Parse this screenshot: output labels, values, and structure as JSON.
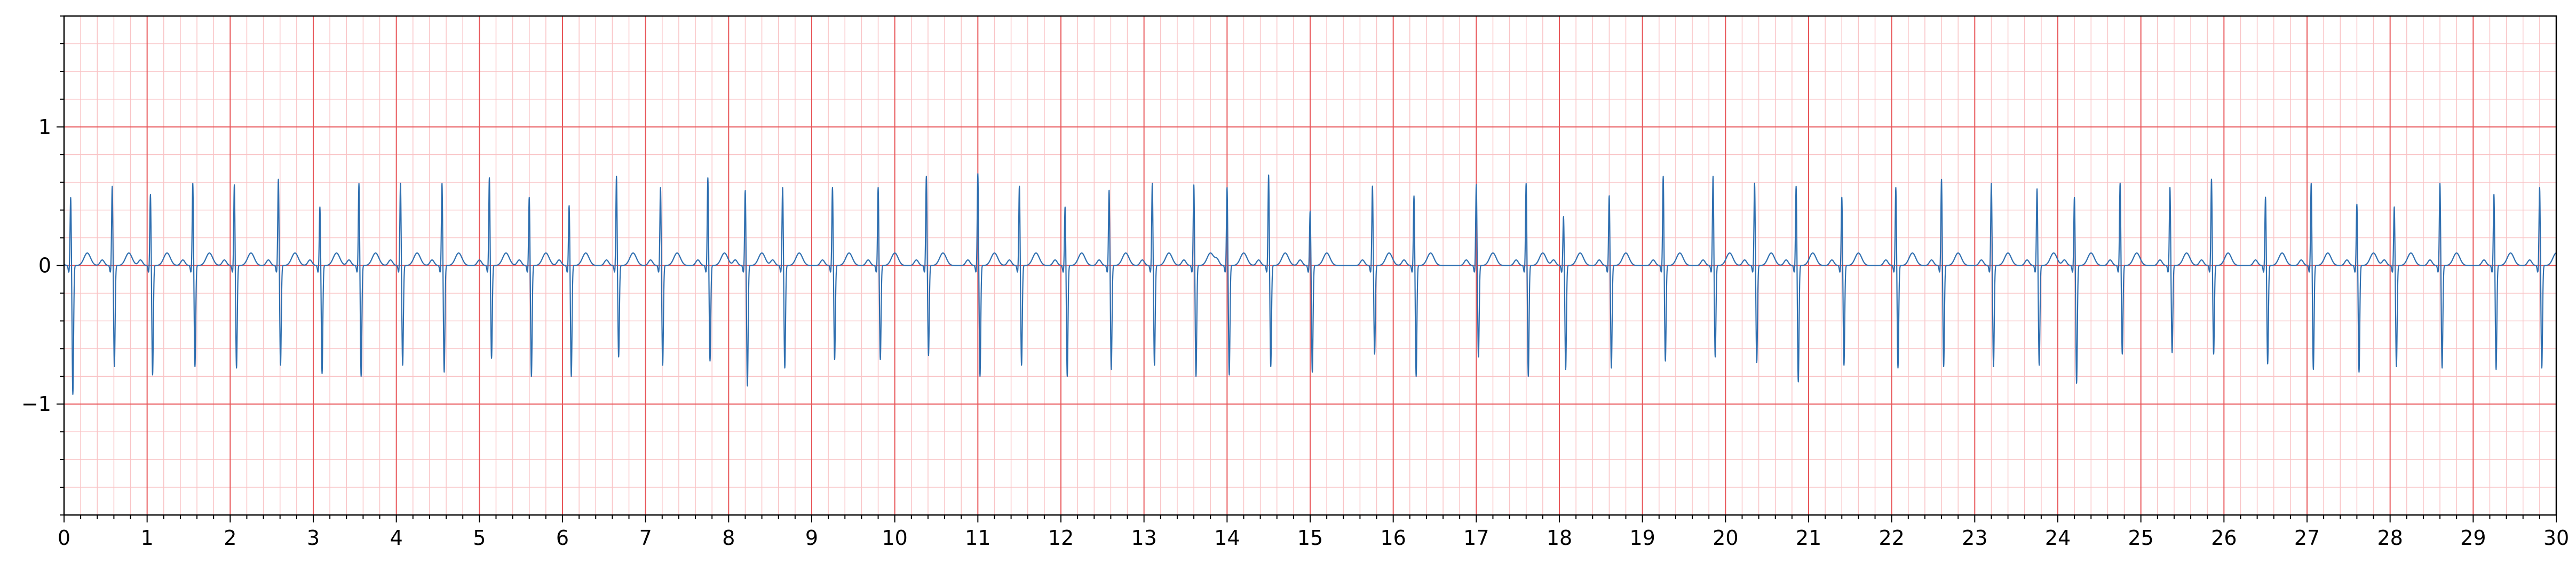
{
  "chart_data": {
    "type": "line",
    "title": "",
    "xlabel": "",
    "ylabel": "",
    "xlim": [
      0,
      30
    ],
    "ylim": [
      -1.8,
      1.8
    ],
    "grid": {
      "on": true,
      "major_color": "#e8575a",
      "minor_color": "#f9c4c6",
      "major_x_step": 1,
      "minor_x_step": 0.2,
      "major_y_step": 1,
      "minor_y_step": 0.2
    },
    "line_color": "#2f6fb0",
    "x_ticks": [
      "0",
      "1",
      "2",
      "3",
      "4",
      "5",
      "6",
      "7",
      "8",
      "9",
      "10",
      "11",
      "12",
      "13",
      "14",
      "15",
      "16",
      "17",
      "18",
      "19",
      "20",
      "21",
      "22",
      "23",
      "24",
      "25",
      "26",
      "27",
      "28",
      "29",
      "30"
    ],
    "y_ticks": [
      {
        "value": -1,
        "label": "−1"
      },
      {
        "value": 0,
        "label": "0"
      },
      {
        "value": 1,
        "label": "1"
      }
    ],
    "heart_rate_bpm": 118,
    "beats": [
      {
        "t": 0.08,
        "r": 0.5,
        "s": -0.93
      },
      {
        "t": 0.58,
        "r": 0.58,
        "s": -0.73
      },
      {
        "t": 1.04,
        "r": 0.52,
        "s": -0.79
      },
      {
        "t": 1.55,
        "r": 0.6,
        "s": -0.73
      },
      {
        "t": 2.05,
        "r": 0.59,
        "s": -0.74
      },
      {
        "t": 2.58,
        "r": 0.63,
        "s": -0.72
      },
      {
        "t": 3.08,
        "r": 0.43,
        "s": -0.78
      },
      {
        "t": 3.55,
        "r": 0.6,
        "s": -0.8
      },
      {
        "t": 4.05,
        "r": 0.6,
        "s": -0.72
      },
      {
        "t": 4.55,
        "r": 0.6,
        "s": -0.77
      },
      {
        "t": 5.12,
        "r": 0.64,
        "s": -0.67
      },
      {
        "t": 5.6,
        "r": 0.5,
        "s": -0.8
      },
      {
        "t": 6.08,
        "r": 0.44,
        "s": -0.8
      },
      {
        "t": 6.65,
        "r": 0.65,
        "s": -0.66
      },
      {
        "t": 7.18,
        "r": 0.57,
        "s": -0.72
      },
      {
        "t": 7.75,
        "r": 0.64,
        "s": -0.69
      },
      {
        "t": 8.2,
        "r": 0.55,
        "s": -0.87
      },
      {
        "t": 8.65,
        "r": 0.57,
        "s": -0.74
      },
      {
        "t": 9.25,
        "r": 0.57,
        "s": -0.68
      },
      {
        "t": 9.8,
        "r": 0.57,
        "s": -0.68
      },
      {
        "t": 10.38,
        "r": 0.65,
        "s": -0.65
      },
      {
        "t": 11.0,
        "r": 0.67,
        "s": -0.8
      },
      {
        "t": 11.5,
        "r": 0.58,
        "s": -0.72
      },
      {
        "t": 12.05,
        "r": 0.43,
        "s": -0.8
      },
      {
        "t": 12.58,
        "r": 0.55,
        "s": -0.75
      },
      {
        "t": 13.1,
        "r": 0.6,
        "s": -0.72
      },
      {
        "t": 13.6,
        "r": 0.59,
        "s": -0.8
      },
      {
        "t": 14.0,
        "r": 0.57,
        "s": -0.79
      },
      {
        "t": 14.5,
        "r": 0.66,
        "s": -0.73
      },
      {
        "t": 15.0,
        "r": 0.4,
        "s": -0.77
      },
      {
        "t": 15.75,
        "r": 0.58,
        "s": -0.64
      },
      {
        "t": 16.25,
        "r": 0.51,
        "s": -0.8
      },
      {
        "t": 17.0,
        "r": 0.59,
        "s": -0.66
      },
      {
        "t": 17.6,
        "r": 0.6,
        "s": -0.8
      },
      {
        "t": 18.05,
        "r": 0.36,
        "s": -0.75
      },
      {
        "t": 18.6,
        "r": 0.51,
        "s": -0.74
      },
      {
        "t": 19.25,
        "r": 0.65,
        "s": -0.69
      },
      {
        "t": 19.85,
        "r": 0.65,
        "s": -0.66
      },
      {
        "t": 20.35,
        "r": 0.6,
        "s": -0.7
      },
      {
        "t": 20.85,
        "r": 0.58,
        "s": -0.84
      },
      {
        "t": 21.4,
        "r": 0.5,
        "s": -0.72
      },
      {
        "t": 22.05,
        "r": 0.57,
        "s": -0.74
      },
      {
        "t": 22.6,
        "r": 0.63,
        "s": -0.73
      },
      {
        "t": 23.2,
        "r": 0.6,
        "s": -0.73
      },
      {
        "t": 23.75,
        "r": 0.56,
        "s": -0.72
      },
      {
        "t": 24.2,
        "r": 0.5,
        "s": -0.85
      },
      {
        "t": 24.75,
        "r": 0.6,
        "s": -0.64
      },
      {
        "t": 25.35,
        "r": 0.57,
        "s": -0.63
      },
      {
        "t": 25.85,
        "r": 0.63,
        "s": -0.64
      },
      {
        "t": 26.5,
        "r": 0.5,
        "s": -0.71
      },
      {
        "t": 27.05,
        "r": 0.6,
        "s": -0.75
      },
      {
        "t": 27.6,
        "r": 0.45,
        "s": -0.77
      },
      {
        "t": 28.05,
        "r": 0.43,
        "s": -0.73
      },
      {
        "t": 28.6,
        "r": 0.6,
        "s": -0.74
      },
      {
        "t": 29.25,
        "r": 0.52,
        "s": -0.75
      },
      {
        "t": 29.8,
        "r": 0.57,
        "s": -0.74
      }
    ]
  }
}
